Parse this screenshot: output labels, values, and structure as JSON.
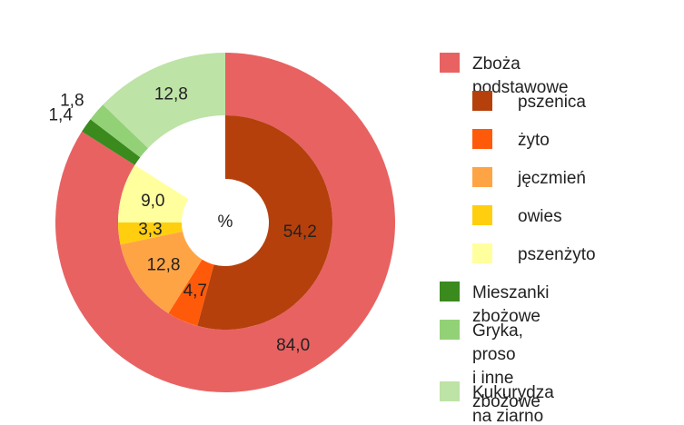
{
  "chart_data": {
    "type": "donut",
    "center_label": "%",
    "rings": [
      {
        "categories": [
          "Zboża podstawowe",
          "Mieszanki zbożowe",
          "Gryka, proso\ni inne zbożowe",
          "Kukurydza na ziarno"
        ],
        "colors": [
          "#e86262",
          "#3a8a1e",
          "#93d177",
          "#bde3a6"
        ],
        "values": [
          84.0,
          1.4,
          1.8,
          12.8
        ],
        "value_labels": [
          "84,0",
          "1,4",
          "1,8",
          "12,8"
        ]
      },
      {
        "categories": [
          "pszenica",
          "żyto",
          "jęczmień",
          "owies",
          "pszenżyto"
        ],
        "colors": [
          "#b5400c",
          "#ff5a0a",
          "#ffa445",
          "#ffcf0f",
          "#ffff9e"
        ],
        "values": [
          54.2,
          4.7,
          12.8,
          3.3,
          9.0
        ],
        "value_labels": [
          "54,2",
          "4,7",
          "12,8",
          "3,3",
          "9,0"
        ]
      }
    ]
  }
}
